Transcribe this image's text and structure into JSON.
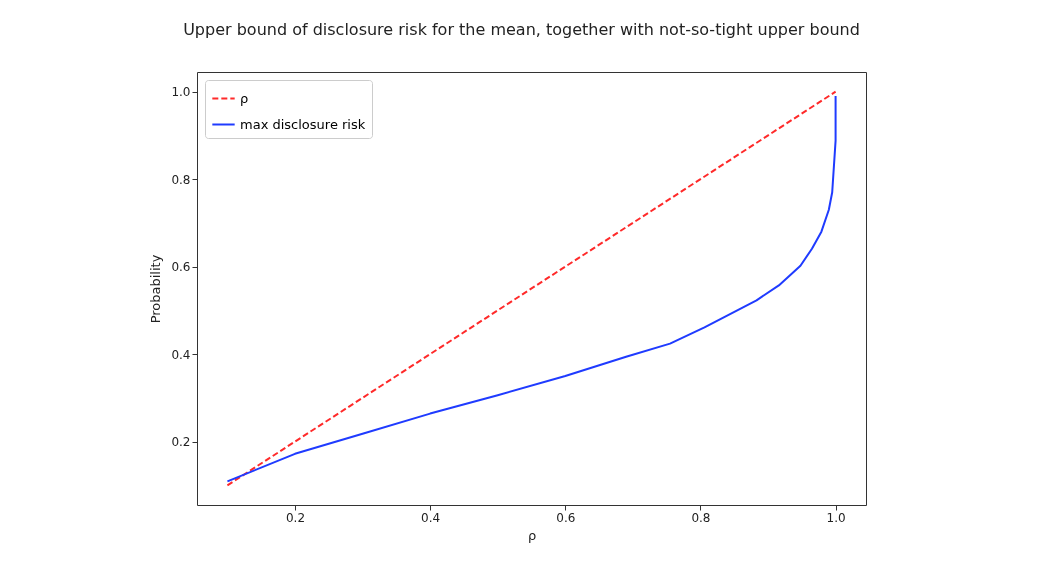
{
  "chart_data": {
    "type": "line",
    "title": "Upper bound of disclosure risk for the mean, together with not-so-tight upper bound",
    "xlabel": "ρ",
    "ylabel": "Probability",
    "xlim": [
      0.055,
      1.045
    ],
    "ylim": [
      0.055,
      1.045
    ],
    "xticks": [
      0.2,
      0.4,
      0.6,
      0.8,
      {
        "value": 1,
        "label": "1.0"
      }
    ],
    "yticks": [
      0.2,
      0.4,
      0.6,
      0.8,
      {
        "value": 1,
        "label": "1.0"
      }
    ],
    "grid": false,
    "legend": "top left",
    "series": [
      {
        "name": "ρ",
        "color": "#ff2a2a",
        "line_style": "dashed",
        "x": [
          0.1,
          1
        ],
        "values": [
          0.1,
          1
        ]
      },
      {
        "name": "max disclosure risk",
        "color": "#1f3bff",
        "line_style": "solid",
        "x": [
          0.1,
          0.2,
          0.3,
          0.4,
          0.5,
          0.6,
          0.69,
          0.755,
          0.806,
          0.883,
          0.916,
          0.948,
          0.965,
          0.979,
          0.99,
          0.995,
          1.0,
          1.0
        ],
        "values": [
          0.109,
          0.172,
          0.218,
          0.264,
          0.306,
          0.35,
          0.394,
          0.424,
          0.461,
          0.523,
          0.557,
          0.602,
          0.641,
          0.68,
          0.73,
          0.77,
          0.888,
          0.99
        ]
      }
    ]
  }
}
